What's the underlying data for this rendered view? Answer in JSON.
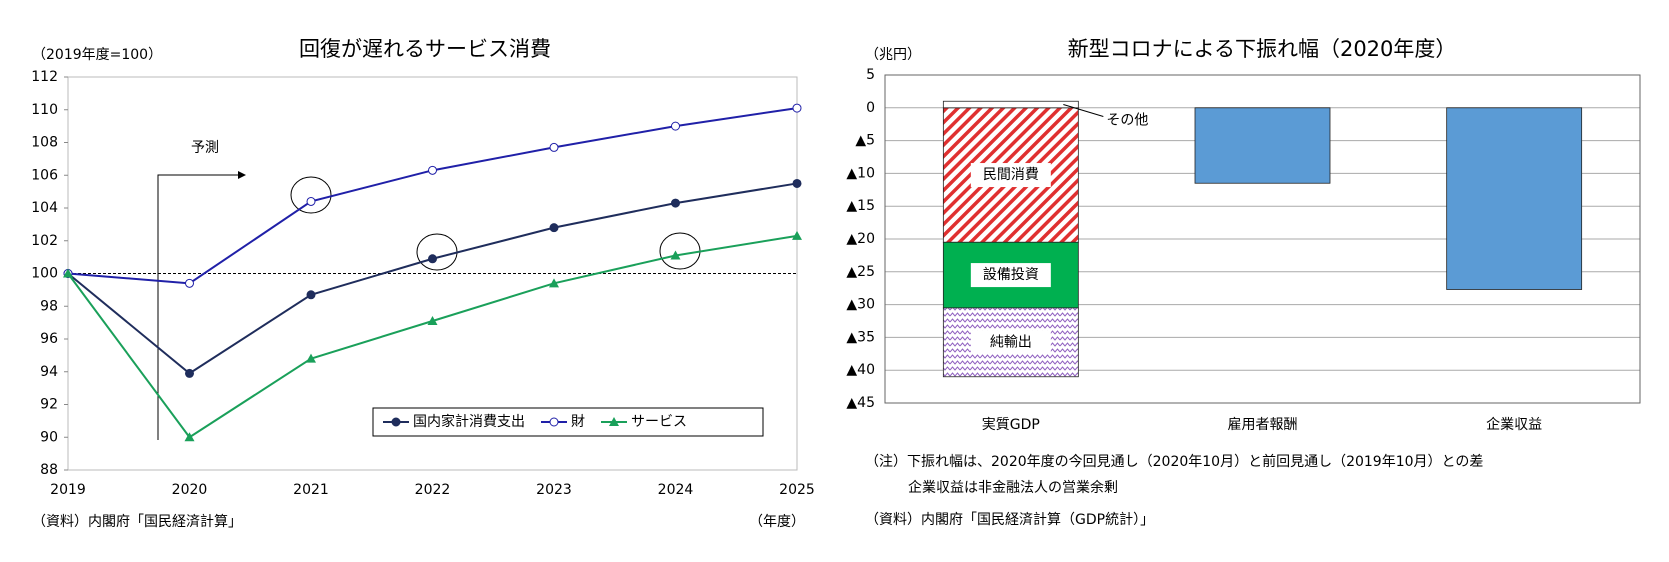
{
  "chart_data": [
    {
      "type": "line",
      "title": "回復が遅れるサービス消費",
      "y_label": "（2019年度=100）",
      "x_label": "（年度）",
      "source": "（資料）内閣府「国民経済計算」",
      "annotation": "予測",
      "categories": [
        "2019",
        "2020",
        "2021",
        "2022",
        "2023",
        "2024",
        "2025"
      ],
      "series": [
        {
          "name": "国内家計消費支出",
          "color": "#1f2d5c",
          "marker": "filled-circle",
          "values": [
            100,
            93.9,
            98.7,
            100.9,
            102.8,
            104.3,
            105.5
          ]
        },
        {
          "name": "財",
          "color": "#2020a8",
          "marker": "open-circle",
          "values": [
            100,
            99.4,
            104.4,
            106.3,
            107.7,
            109.0,
            110.1
          ]
        },
        {
          "name": "サービス",
          "color": "#1aa05a",
          "marker": "triangle",
          "values": [
            100,
            90.0,
            94.8,
            97.1,
            99.4,
            101.1,
            102.3
          ]
        }
      ],
      "ylim": [
        88,
        112
      ],
      "yticks": [
        88,
        90,
        92,
        94,
        96,
        98,
        100,
        102,
        104,
        106,
        108,
        110,
        112
      ],
      "reference_line": 100,
      "legend": "lower right",
      "grid": false
    },
    {
      "type": "stacked-bar",
      "title": "新型コロナによる下振れ幅（2020年度）",
      "y_label": "（兆円）",
      "notes": [
        "（注）下振れ幅は、2020年度の今回見通し（2020年10月）と前回見通し（2019年10月）との差",
        "企業収益は非金融法人の営業余剰"
      ],
      "source": "（資料）内閣府「国民経済計算（GDP統計）」",
      "categories": [
        "実質GDP",
        "雇用者報酬",
        "企業収益"
      ],
      "series": [
        {
          "name": "民間消費",
          "color": "#e03030",
          "pattern": "hatch",
          "values": [
            -20.5,
            null,
            null
          ]
        },
        {
          "name": "設備投資",
          "color": "#00b050",
          "values": [
            -10,
            null,
            null
          ]
        },
        {
          "name": "純輸出",
          "color": "#9060c0",
          "pattern": "zigzag",
          "values": [
            -10.5,
            null,
            null
          ]
        },
        {
          "name": "その他",
          "color": "#ffffff",
          "label_position": "outside",
          "values": [
            1,
            null,
            null
          ]
        },
        {
          "color": "#5b9bd5",
          "values": [
            null,
            -11.5,
            -27.7
          ]
        }
      ],
      "ylim": [
        -45,
        5
      ],
      "yticks": [
        5,
        0,
        {
          "value": -5,
          "label": "▲5"
        },
        {
          "value": -10,
          "label": "▲10"
        },
        {
          "value": -15,
          "label": "▲15"
        },
        {
          "value": -20,
          "label": "▲20"
        },
        {
          "value": -25,
          "label": "▲25"
        },
        {
          "value": -30,
          "label": "▲30"
        },
        {
          "value": -35,
          "label": "▲35"
        },
        {
          "value": -40,
          "label": "▲40"
        },
        {
          "value": -45,
          "label": "▲45"
        }
      ],
      "grid": true
    }
  ]
}
